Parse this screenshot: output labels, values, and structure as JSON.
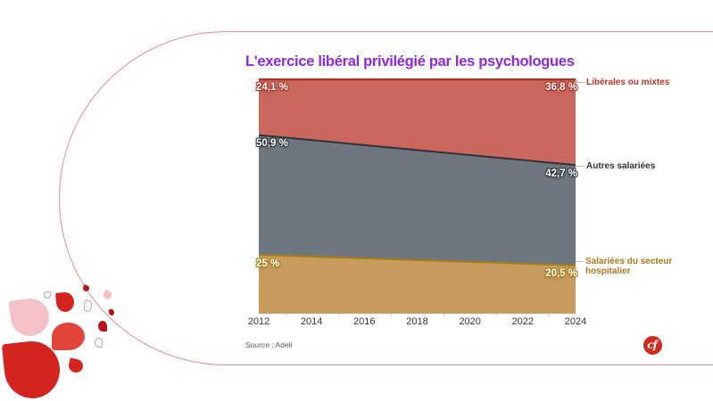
{
  "decor": {
    "palette": {
      "capsule_outline": "#E8918B",
      "petal_dark_red": "#D42420",
      "petal_bright_red": "#E2453C",
      "petal_deep_red": "#B81418",
      "petal_pink": "#F4C2C6",
      "petal_outline_gray": "#AAAAAA"
    }
  },
  "branding": {
    "logo_text": "cf",
    "logo_bg": "#CE2A1E"
  },
  "chart_data": {
    "type": "area",
    "stacked": true,
    "percent_total": 100,
    "title": "L'exercice libéral privilégié par les psychologues",
    "title_color": "#9227E3",
    "x": [
      2012,
      2024
    ],
    "x_ticks": [
      "2012",
      "2014",
      "2016",
      "2018",
      "2020",
      "2022",
      "2024"
    ],
    "ylim": [
      0,
      100
    ],
    "grid": false,
    "legend_position": "right",
    "source": "Source : Adeli",
    "series": [
      {
        "name": "Libérales ou mixtes",
        "values": [
          24.1,
          36.8
        ],
        "value_labels": [
          "24,1 %",
          "36,8 %"
        ],
        "fill": "#CB685D",
        "stroke": "#A93226",
        "label_color": "#C23325"
      },
      {
        "name": "Autres salariées",
        "values": [
          50.9,
          42.7
        ],
        "value_labels": [
          "50,9 %",
          "42,7 %"
        ],
        "fill": "#6E7680",
        "stroke": "#2E333B",
        "label_color": "#2F3337"
      },
      {
        "name": "Salariées du secteur hospitalier",
        "values": [
          25.0,
          20.5
        ],
        "value_labels": [
          "25 %",
          "20,5 %"
        ],
        "fill": "#C89C5E",
        "stroke": "#A97D16",
        "label_color": "#B07818"
      }
    ],
    "axis": {
      "tick_color": "#CCCCCC",
      "label_color": "#333333",
      "source_color": "#5A5A5A",
      "connector_color": "#B8B8B8"
    }
  }
}
